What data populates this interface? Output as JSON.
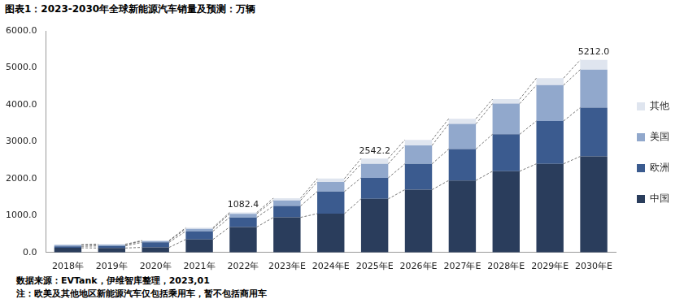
{
  "chart_data": {
    "type": "bar",
    "title": "图表1：2023-2030年全球新能源汽车销量及预测：万辆",
    "notes": [
      "数据来源：EVTank，伊维智库整理，2023,01",
      "注：欧美及其他地区新能源汽车仅包括乘用车，暂不包括商用车"
    ],
    "categories": [
      "2018年",
      "2019年",
      "2020年",
      "2021年",
      "2022年",
      "2023年E",
      "2024年E",
      "2025年E",
      "2026年E",
      "2027年E",
      "2028年E",
      "2029年E",
      "2030年E"
    ],
    "series": [
      {
        "name": "中国",
        "color": "#2a3d5c",
        "values": [
          126,
          121,
          137,
          352,
          689,
          950,
          1050,
          1450,
          1700,
          1950,
          2200,
          2400,
          2600
        ]
      },
      {
        "name": "欧洲",
        "color": "#3b5b8f",
        "values": [
          40,
          56,
          137,
          223,
          260,
          310,
          600,
          570,
          700,
          850,
          1000,
          1160,
          1320
        ]
      },
      {
        "name": "美国",
        "color": "#91a8cc",
        "values": [
          36,
          33,
          33,
          65,
          99,
          150,
          260,
          380,
          500,
          680,
          830,
          970,
          1030
        ]
      },
      {
        "name": "其他",
        "color": "#dfe5ef",
        "values": [
          8,
          11,
          17,
          30,
          34.4,
          60,
          90,
          142.2,
          150,
          140,
          120,
          190,
          262
        ]
      }
    ],
    "annotations": [
      {
        "x": "2022年",
        "value": 1082.4,
        "label": "1082.4"
      },
      {
        "x": "2025年E",
        "value": 2542.2,
        "label": "2542.2"
      },
      {
        "x": "2030年E",
        "value": 5212,
        "label": "5212.0"
      }
    ],
    "stacked": true,
    "legend": "right",
    "grid": false,
    "ylim": [
      0,
      6000
    ],
    "yticks": [
      {
        "value": 0,
        "label": "0.0"
      },
      {
        "value": 1000,
        "label": "1000.0"
      },
      {
        "value": 2000,
        "label": "2000.0"
      },
      {
        "value": 3000,
        "label": "3000.0"
      },
      {
        "value": 4000,
        "label": "4000.0"
      },
      {
        "value": 5000,
        "label": "5000.0"
      },
      {
        "value": 6000,
        "label": "6000.0"
      }
    ]
  }
}
